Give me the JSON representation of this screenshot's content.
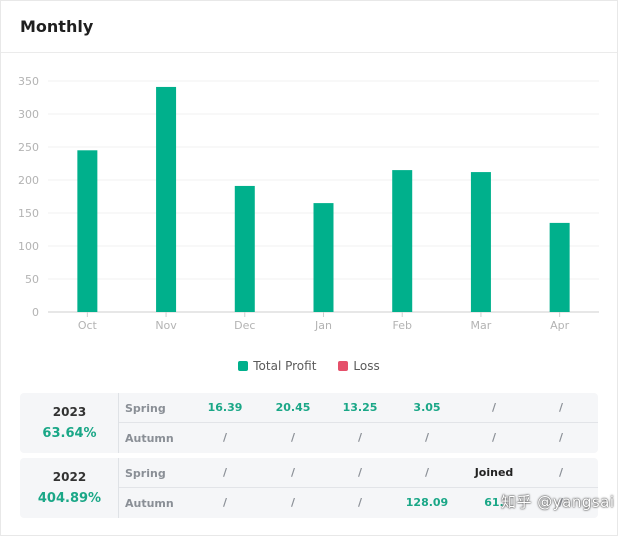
{
  "header": {
    "title": "Monthly"
  },
  "colors": {
    "profit": "#00b08c",
    "loss": "#e5506a",
    "positive_text": "#1aa787"
  },
  "chart_data": {
    "type": "bar",
    "categories": [
      "Oct",
      "Nov",
      "Dec",
      "Jan",
      "Feb",
      "Mar",
      "Apr"
    ],
    "series": [
      {
        "name": "Total Profit",
        "values": [
          245,
          341,
          191,
          165,
          215,
          212,
          135
        ]
      },
      {
        "name": "Loss",
        "values": [
          0,
          0,
          0,
          0,
          0,
          0,
          0
        ]
      }
    ],
    "ylim": [
      0,
      350
    ],
    "yticks": [
      0,
      50,
      100,
      150,
      200,
      250,
      300,
      350
    ],
    "grid": true,
    "legend": "bottom-center"
  },
  "legend": {
    "profit_label": "Total Profit",
    "loss_label": "Loss"
  },
  "years": [
    {
      "year": "2023",
      "percent": "63.64%",
      "spring": {
        "name": "Spring",
        "cells": [
          "16.39",
          "20.45",
          "13.25",
          "3.05",
          "/",
          "/"
        ]
      },
      "autumn": {
        "name": "Autumn",
        "cells": [
          "/",
          "/",
          "/",
          "/",
          "/",
          "/"
        ]
      }
    },
    {
      "year": "2022",
      "percent": "404.89%",
      "spring": {
        "name": "Spring",
        "cells": [
          "/",
          "/",
          "/",
          "/",
          "Joined",
          "/"
        ]
      },
      "autumn": {
        "name": "Autumn",
        "cells": [
          "/",
          "/",
          "/",
          "128.09",
          "61.",
          "/"
        ]
      }
    }
  ],
  "watermark": "知乎 @yangsai"
}
